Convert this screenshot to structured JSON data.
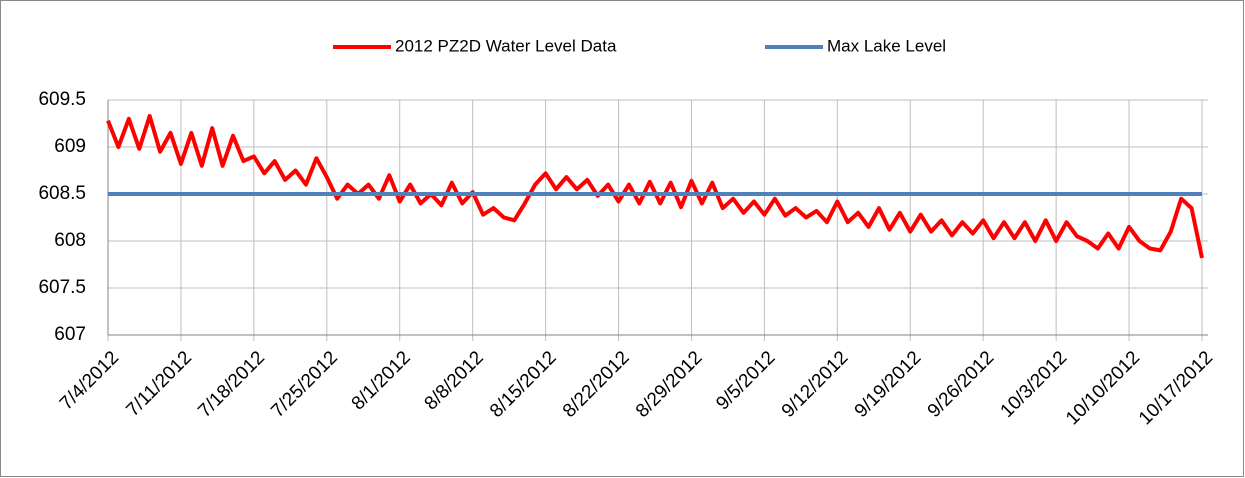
{
  "chart_data": {
    "type": "line",
    "series": [
      {
        "name": "2012 PZ2D Water Level Data",
        "color": "#ff0000",
        "x": [
          "7/4/2012",
          "7/5/2012",
          "7/6/2012",
          "7/7/2012",
          "7/8/2012",
          "7/9/2012",
          "7/10/2012",
          "7/11/2012",
          "7/12/2012",
          "7/13/2012",
          "7/14/2012",
          "7/15/2012",
          "7/16/2012",
          "7/17/2012",
          "7/18/2012",
          "7/19/2012",
          "7/20/2012",
          "7/21/2012",
          "7/22/2012",
          "7/23/2012",
          "7/24/2012",
          "7/25/2012",
          "7/26/2012",
          "7/27/2012",
          "7/28/2012",
          "7/29/2012",
          "7/30/2012",
          "7/31/2012",
          "8/1/2012",
          "8/2/2012",
          "8/3/2012",
          "8/4/2012",
          "8/5/2012",
          "8/6/2012",
          "8/7/2012",
          "8/8/2012",
          "8/9/2012",
          "8/10/2012",
          "8/11/2012",
          "8/12/2012",
          "8/13/2012",
          "8/14/2012",
          "8/15/2012",
          "8/16/2012",
          "8/17/2012",
          "8/18/2012",
          "8/19/2012",
          "8/20/2012",
          "8/21/2012",
          "8/22/2012",
          "8/23/2012",
          "8/24/2012",
          "8/25/2012",
          "8/26/2012",
          "8/27/2012",
          "8/28/2012",
          "8/29/2012",
          "8/30/2012",
          "8/31/2012",
          "9/1/2012",
          "9/2/2012",
          "9/3/2012",
          "9/4/2012",
          "9/5/2012",
          "9/6/2012",
          "9/7/2012",
          "9/8/2012",
          "9/9/2012",
          "9/10/2012",
          "9/11/2012",
          "9/12/2012",
          "9/13/2012",
          "9/14/2012",
          "9/15/2012",
          "9/16/2012",
          "9/17/2012",
          "9/18/2012",
          "9/19/2012",
          "9/20/2012",
          "9/21/2012",
          "9/22/2012",
          "9/23/2012",
          "9/24/2012",
          "9/25/2012",
          "9/26/2012",
          "9/27/2012",
          "9/28/2012",
          "9/29/2012",
          "9/30/2012",
          "10/1/2012",
          "10/2/2012",
          "10/3/2012",
          "10/4/2012",
          "10/5/2012",
          "10/6/2012",
          "10/7/2012",
          "10/8/2012",
          "10/9/2012",
          "10/10/2012",
          "10/11/2012",
          "10/12/2012",
          "10/13/2012",
          "10/14/2012",
          "10/15/2012",
          "10/16/2012",
          "10/17/2012"
        ],
        "values": [
          609.28,
          609.0,
          609.3,
          608.98,
          609.33,
          608.95,
          609.15,
          608.82,
          609.15,
          608.8,
          609.2,
          608.8,
          609.12,
          608.85,
          608.9,
          608.72,
          608.85,
          608.65,
          608.75,
          608.6,
          608.88,
          608.68,
          608.45,
          608.6,
          608.5,
          608.6,
          608.45,
          608.7,
          608.42,
          608.6,
          608.4,
          608.5,
          608.38,
          608.62,
          608.4,
          608.52,
          608.28,
          608.35,
          608.25,
          608.22,
          608.4,
          608.6,
          608.72,
          608.55,
          608.68,
          608.55,
          608.65,
          608.48,
          608.6,
          608.42,
          608.6,
          608.4,
          608.63,
          608.4,
          608.62,
          608.36,
          608.64,
          608.4,
          608.62,
          608.35,
          608.45,
          608.3,
          608.42,
          608.28,
          608.45,
          608.27,
          608.35,
          608.25,
          608.32,
          608.2,
          608.42,
          608.2,
          608.3,
          608.15,
          608.35,
          608.12,
          608.3,
          608.1,
          608.28,
          608.1,
          608.22,
          608.06,
          608.2,
          608.08,
          608.22,
          608.03,
          608.2,
          608.03,
          608.2,
          608.0,
          608.22,
          608.0,
          608.2,
          608.05,
          608.0,
          607.92,
          608.08,
          607.92,
          608.15,
          608.0,
          607.92,
          607.9,
          608.1,
          608.45,
          608.35,
          607.82
        ]
      },
      {
        "name": "Max Lake Level",
        "color": "#4f81bd",
        "x": [
          "7/4/2012",
          "10/17/2012"
        ],
        "values": [
          608.5,
          608.5
        ]
      }
    ],
    "xlim": [
      "7/4/2012",
      "10/17/2012"
    ],
    "xticks": [
      "7/4/2012",
      "7/11/2012",
      "7/18/2012",
      "7/25/2012",
      "8/1/2012",
      "8/8/2012",
      "8/15/2012",
      "8/22/2012",
      "8/29/2012",
      "9/5/2012",
      "9/12/2012",
      "9/19/2012",
      "9/26/2012",
      "10/3/2012",
      "10/10/2012",
      "10/17/2012"
    ],
    "ylim": [
      607,
      609.5
    ],
    "yticks": [
      607,
      607.5,
      608,
      608.5,
      609,
      609.5
    ],
    "grid": true,
    "legend": "top"
  }
}
